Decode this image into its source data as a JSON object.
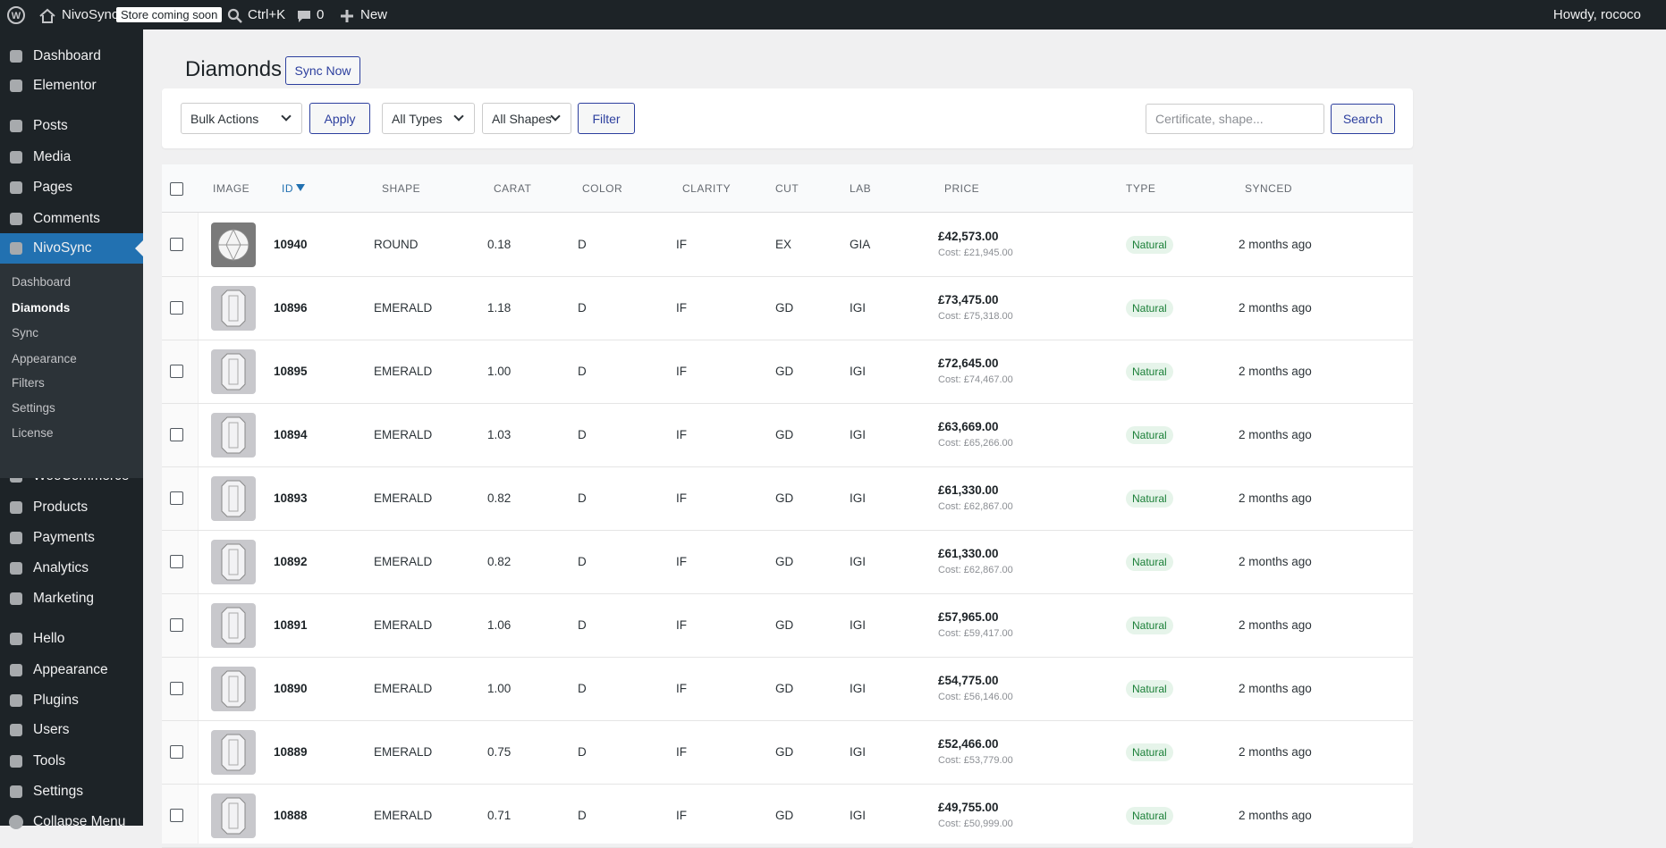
{
  "admin_bar": {
    "site": "NivoSync",
    "badge": "Store coming soon",
    "search": "Ctrl+K",
    "comments": "0",
    "new": "New",
    "greeting": "Howdy, rococo"
  },
  "menu": {
    "top": [
      "Dashboard",
      "Elementor"
    ],
    "content": [
      "Posts",
      "Media",
      "Pages",
      "Comments",
      "NivoSync"
    ],
    "submenu": [
      "Dashboard",
      "Diamonds",
      "Sync",
      "Appearance",
      "Filters",
      "Settings",
      "License"
    ],
    "commerce": [
      "WooCommerce",
      "Products",
      "Payments",
      "Analytics",
      "Marketing"
    ],
    "tools": [
      "Hello",
      "Appearance",
      "Plugins",
      "Users",
      "Tools",
      "Settings"
    ],
    "collapse": "Collapse Menu"
  },
  "page": {
    "title": "Diamonds",
    "sync_button": "Sync Now",
    "bulk_actions": "Bulk Actions",
    "apply": "Apply",
    "type_filter": "All Types",
    "shape_filter": "All Shapes",
    "filter": "Filter",
    "search_placeholder": "Certificate, shape...",
    "search": "Search"
  },
  "table": {
    "columns": [
      "IMAGE",
      "ID",
      "SHAPE",
      "CARAT",
      "COLOR",
      "CLARITY",
      "CUT",
      "LAB",
      "PRICE",
      "TYPE",
      "SYNCED"
    ],
    "rows": [
      [
        "10940",
        "ROUND",
        "0.18",
        "D",
        "IF",
        "EX",
        "GIA",
        "£42,573.00",
        "Cost: £21,945.00",
        "Natural",
        "2 months ago"
      ],
      [
        "10896",
        "EMERALD",
        "1.18",
        "D",
        "IF",
        "GD",
        "IGI",
        "£73,475.00",
        "Cost: £75,318.00",
        "Natural",
        "2 months ago"
      ],
      [
        "10895",
        "EMERALD",
        "1.00",
        "D",
        "IF",
        "GD",
        "IGI",
        "£72,645.00",
        "Cost: £74,467.00",
        "Natural",
        "2 months ago"
      ],
      [
        "10894",
        "EMERALD",
        "1.03",
        "D",
        "IF",
        "GD",
        "IGI",
        "£63,669.00",
        "Cost: £65,266.00",
        "Natural",
        "2 months ago"
      ],
      [
        "10893",
        "EMERALD",
        "0.82",
        "D",
        "IF",
        "GD",
        "IGI",
        "£61,330.00",
        "Cost: £62,867.00",
        "Natural",
        "2 months ago"
      ],
      [
        "10892",
        "EMERALD",
        "0.82",
        "D",
        "IF",
        "GD",
        "IGI",
        "£61,330.00",
        "Cost: £62,867.00",
        "Natural",
        "2 months ago"
      ],
      [
        "10891",
        "EMERALD",
        "1.06",
        "D",
        "IF",
        "GD",
        "IGI",
        "£57,965.00",
        "Cost: £59,417.00",
        "Natural",
        "2 months ago"
      ],
      [
        "10890",
        "EMERALD",
        "1.00",
        "D",
        "IF",
        "GD",
        "IGI",
        "£54,775.00",
        "Cost: £56,146.00",
        "Natural",
        "2 months ago"
      ],
      [
        "10889",
        "EMERALD",
        "0.75",
        "D",
        "IF",
        "GD",
        "IGI",
        "£52,466.00",
        "Cost: £53,779.00",
        "Natural",
        "2 months ago"
      ],
      [
        "10888",
        "EMERALD",
        "0.71",
        "D",
        "IF",
        "GD",
        "IGI",
        "£49,755.00",
        "Cost: £50,999.00",
        "Natural",
        "2 months ago"
      ]
    ]
  }
}
